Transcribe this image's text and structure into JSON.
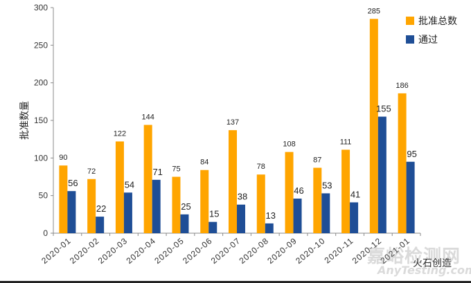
{
  "chart_data": {
    "type": "bar",
    "title": "",
    "xlabel": "",
    "ylabel": "批准数量",
    "ylim": [
      0,
      300
    ],
    "yticks": [
      0,
      50,
      100,
      150,
      200,
      250,
      300
    ],
    "grid": false,
    "legend_position": "top-right",
    "categories": [
      "2020-01",
      "2020-02",
      "2020-03",
      "2020-04",
      "2020-05",
      "2020-06",
      "2020-07",
      "2020-08",
      "2020-09",
      "2020-10",
      "2020-11",
      "2020-12",
      "2021-01"
    ],
    "series": [
      {
        "name": "批准总数",
        "color": "#FFA500",
        "values": [
          90,
          72,
          122,
          144,
          75,
          84,
          137,
          78,
          108,
          87,
          111,
          285,
          186
        ]
      },
      {
        "name": "通过",
        "color": "#1F4E96",
        "values": [
          56,
          22,
          54,
          71,
          25,
          15,
          38,
          13,
          46,
          53,
          41,
          155,
          95
        ]
      }
    ]
  },
  "watermark": {
    "site_cn": "嘉峪检测网",
    "site_en": "AnyTesting.com",
    "source": "火石创造"
  }
}
